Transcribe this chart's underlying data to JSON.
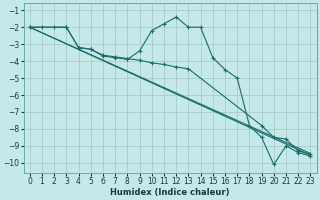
{
  "xlabel": "Humidex (Indice chaleur)",
  "xlim": [
    -0.5,
    23.5
  ],
  "ylim": [
    -10.6,
    -0.6
  ],
  "yticks": [
    -10,
    -9,
    -8,
    -7,
    -6,
    -5,
    -4,
    -3,
    -2,
    -1
  ],
  "xticks": [
    0,
    1,
    2,
    3,
    4,
    5,
    6,
    7,
    8,
    9,
    10,
    11,
    12,
    13,
    14,
    15,
    16,
    17,
    18,
    19,
    20,
    21,
    22,
    23
  ],
  "bg_color": "#c5e8e8",
  "line_color": "#1a6b6b",
  "grid_color": "#a8cccc",
  "line1_x": [
    0,
    1,
    2,
    3,
    4,
    5,
    6,
    7,
    8,
    9,
    10,
    11,
    12,
    13,
    14,
    15,
    16,
    17,
    18,
    19,
    20,
    21,
    22,
    23
  ],
  "line1_y": [
    -2.0,
    -2.0,
    -2.0,
    -2.0,
    -3.2,
    -3.3,
    -3.7,
    -3.8,
    -3.9,
    -3.4,
    -2.2,
    -1.8,
    -1.4,
    -2.0,
    -2.0,
    -3.8,
    -4.5,
    -5.0,
    -7.8,
    -8.5,
    -10.1,
    -9.0,
    -9.4,
    -9.6
  ],
  "line2_x": [
    0,
    3,
    4,
    5,
    6,
    7,
    8,
    9,
    10,
    11,
    12,
    13,
    19,
    20,
    21,
    22,
    23
  ],
  "line2_y": [
    -2.0,
    -2.0,
    -3.2,
    -3.3,
    -3.65,
    -3.75,
    -3.85,
    -3.95,
    -4.1,
    -4.2,
    -4.35,
    -4.45,
    -7.8,
    -8.5,
    -8.6,
    -9.3,
    -9.5
  ],
  "line3_start": [
    -2.0
  ],
  "line3_end": [
    -9.55
  ],
  "line4_start": [
    -2.0
  ],
  "line4_end": [
    -9.45
  ]
}
